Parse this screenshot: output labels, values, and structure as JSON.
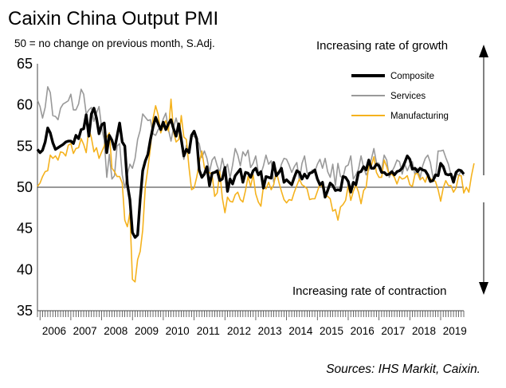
{
  "chart_data": {
    "type": "line",
    "title": "Caixin China Output PMI",
    "subtitle": "50 = no change on previous month, S.Adj.",
    "annotation_top": "Increasing rate of growth",
    "annotation_bottom": "Increasing rate of contraction",
    "source": "Sources: IHS Markit, Caixin.",
    "ylim": [
      35,
      65
    ],
    "yticks": [
      35,
      40,
      45,
      50,
      55,
      60,
      65
    ],
    "reference_line": 50,
    "x_start": "2005-12",
    "x_end": "2019-10",
    "year_labels": [
      "2006",
      "2007",
      "2008",
      "2009",
      "2010",
      "2011",
      "2012",
      "2013",
      "2014",
      "2015",
      "2016",
      "2017",
      "2018",
      "2019"
    ],
    "legend_position": "top-right",
    "grid": false,
    "series": [
      {
        "name": "Composite",
        "color": "#000000",
        "start": "2005-12",
        "values": [
          54.6,
          54.2,
          54.5,
          55.5,
          57.2,
          56.6,
          55.4,
          54.6,
          54.8,
          55.0,
          55.2,
          55.5,
          55.6,
          55.6,
          55.3,
          56.3,
          55.9,
          57.0,
          57.1,
          58.8,
          56.2,
          58.9,
          59.6,
          58.4,
          56.5,
          57.6,
          57.8,
          54.2,
          56.3,
          55.7,
          54.6,
          56.2,
          57.8,
          55.5,
          55.0,
          50.4,
          48.5,
          44.5,
          43.9,
          44.2,
          48.5,
          52.0,
          53.2,
          54.0,
          55.8,
          57.3,
          58.5,
          57.7,
          57.0,
          57.9,
          57.0,
          57.7,
          58.2,
          57.1,
          56.2,
          57.7,
          55.8,
          53.8,
          54.6,
          54.2,
          56.3,
          56.8,
          55.9,
          52.1,
          51.2,
          51.6,
          52.5,
          50.2,
          51.7,
          51.8,
          52.0,
          50.8,
          51.0,
          52.4,
          49.5,
          51.0,
          50.4,
          51.4,
          51.8,
          52.2,
          50.6,
          51.8,
          51.7,
          51.2,
          52.0,
          52.3,
          51.5,
          51.9,
          49.9,
          51.3,
          51.2,
          51.1,
          53.0,
          51.4,
          51.8,
          52.3,
          50.6,
          50.9,
          50.6,
          50.3,
          51.2,
          52.0,
          51.8,
          51.0,
          51.6,
          51.1,
          51.7,
          51.8,
          52.1,
          51.0,
          50.3,
          50.6,
          48.8,
          49.6,
          50.5,
          50.2,
          49.6,
          49.7,
          49.6,
          51.3,
          51.2,
          50.7,
          49.4,
          50.6,
          50.3,
          51.8,
          51.9,
          52.5,
          52.1,
          53.3,
          52.3,
          52.3,
          52.8,
          52.6,
          51.8,
          51.8,
          51.5,
          51.6,
          51.9,
          51.5,
          51.9,
          52.0,
          52.3,
          53.0,
          53.8,
          53.4,
          52.2,
          52.3,
          51.9,
          52.3,
          52.1,
          52.0,
          51.5,
          50.7,
          50.8,
          51.5,
          51.4,
          52.9,
          52.5,
          51.6,
          51.5,
          51.6,
          50.6,
          51.8,
          52.1,
          52.0,
          51.6
        ]
      },
      {
        "name": "Services",
        "color": "#999999",
        "start": "2005-12",
        "values": [
          60.6,
          59.8,
          58.4,
          59.7,
          62.2,
          61.5,
          58.7,
          58.6,
          58.2,
          59.6,
          60.1,
          60.3,
          60.5,
          61.3,
          59.4,
          59.4,
          60.1,
          61.9,
          61.3,
          58.9,
          59.4,
          59.7,
          58.0,
          59.0,
          59.8,
          57.2,
          55.7,
          51.2,
          54.0,
          51.0,
          51.4,
          55.0,
          55.3,
          51.5,
          49.9,
          51.6,
          52.8,
          52.3,
          53.5,
          55.8,
          56.9,
          58.9,
          58.5,
          58.1,
          58.2,
          56.5,
          56.3,
          57.0,
          57.3,
          58.3,
          59.0,
          57.0,
          55.6,
          57.3,
          58.4,
          57.1,
          55.3,
          53.4,
          55.1,
          54.2,
          56.2,
          56.2,
          55.7,
          55.3,
          53.6,
          54.4,
          53.5,
          51.9,
          53.3,
          53.7,
          52.6,
          51.8,
          53.5,
          52.1,
          52.8,
          51.1,
          52.7,
          54.7,
          53.9,
          52.6,
          54.3,
          53.8,
          54.5,
          52.4,
          52.9,
          53.8,
          51.8,
          51.6,
          52.6,
          53.9,
          52.8,
          53.2,
          50.6,
          51.4,
          51.6,
          52.8,
          53.5,
          53.4,
          52.7,
          51.8,
          52.5,
          53.0,
          50.8,
          52.9,
          53.8,
          51.8,
          51.5,
          52.1,
          51.9,
          52.8,
          53.4,
          52.3,
          53.5,
          51.9,
          51.2,
          52.8,
          50.2,
          52.9,
          51.3,
          51.2,
          52.5,
          52.7,
          53.8,
          51.0,
          51.5,
          52.2,
          53.8,
          52.4,
          51.5,
          52.1,
          53.4,
          54.7,
          53.0,
          52.9,
          52.1,
          53.9,
          53.3,
          51.2,
          51.9,
          52.5,
          53.3,
          53.1,
          51.6,
          52.8,
          52.0,
          52.7,
          53.1,
          51.5,
          52.3,
          51.1,
          52.6,
          53.5,
          53.9,
          53.0,
          51.2,
          51.1,
          54.4,
          54.4,
          54.5,
          53.6,
          52.8,
          51.5,
          51.2,
          51.8,
          51.4,
          52.0,
          51.4
        ]
      },
      {
        "name": "Manufacturing",
        "color": "#f5b21d",
        "start": "2005-12",
        "values": [
          50.1,
          50.5,
          51.3,
          51.9,
          52.0,
          53.9,
          53.5,
          53.8,
          53.3,
          54.3,
          54.2,
          53.8,
          55.1,
          55.3,
          54.1,
          54.7,
          54.8,
          55.9,
          55.2,
          54.2,
          57.1,
          56.0,
          54.3,
          54.8,
          53.5,
          54.3,
          55.0,
          56.1,
          56.6,
          52.3,
          51.9,
          51.3,
          51.3,
          50.5,
          46.0,
          45.2,
          46.9,
          38.8,
          38.5,
          41.2,
          42.2,
          44.8,
          50.1,
          52.3,
          54.8,
          58.3,
          59.9,
          58.8,
          56.6,
          57.4,
          58.1,
          56.8,
          60.7,
          56.7,
          55.5,
          55.8,
          58.7,
          56.1,
          55.8,
          52.4,
          49.7,
          49.9,
          51.2,
          52.9,
          54.4,
          52.4,
          51.7,
          51.8,
          51.5,
          48.9,
          49.3,
          51.9,
          48.7,
          46.9,
          48.8,
          48.3,
          48.2,
          49.1,
          49.4,
          48.5,
          48.2,
          49.6,
          51.3,
          50.1,
          51.5,
          49.2,
          48.2,
          47.7,
          50.1,
          49.8,
          50.6,
          49.7,
          50.3,
          52.0,
          50.6,
          49.5,
          48.5,
          48.1,
          48.5,
          48.4,
          49.4,
          50.2,
          51.0,
          50.3,
          50.1,
          49.8,
          48.5,
          48.6,
          48.6,
          49.5,
          50.4,
          50.0,
          48.9,
          48.9,
          48.6,
          47.1,
          47.3,
          46.0,
          47.6,
          47.9,
          48.4,
          50.2,
          48.4,
          49.5,
          50.3,
          49.4,
          48.0,
          49.6,
          50.0,
          52.7,
          52.6,
          53.7,
          51.8,
          51.2,
          51.2,
          53.3,
          52.5,
          51.5,
          51.6,
          51.2,
          50.4,
          51.3,
          51.0,
          51.1,
          51.4,
          50.3,
          50.1,
          51.6,
          51.7,
          50.9,
          51.2,
          50.6,
          51.6,
          51.0,
          50.9,
          50.7,
          49.7,
          48.3,
          49.9,
          50.8,
          50.2,
          50.2,
          49.4,
          49.9,
          51.4,
          51.4,
          49.3,
          50.0,
          49.4,
          51.4,
          52.9
        ]
      }
    ]
  }
}
